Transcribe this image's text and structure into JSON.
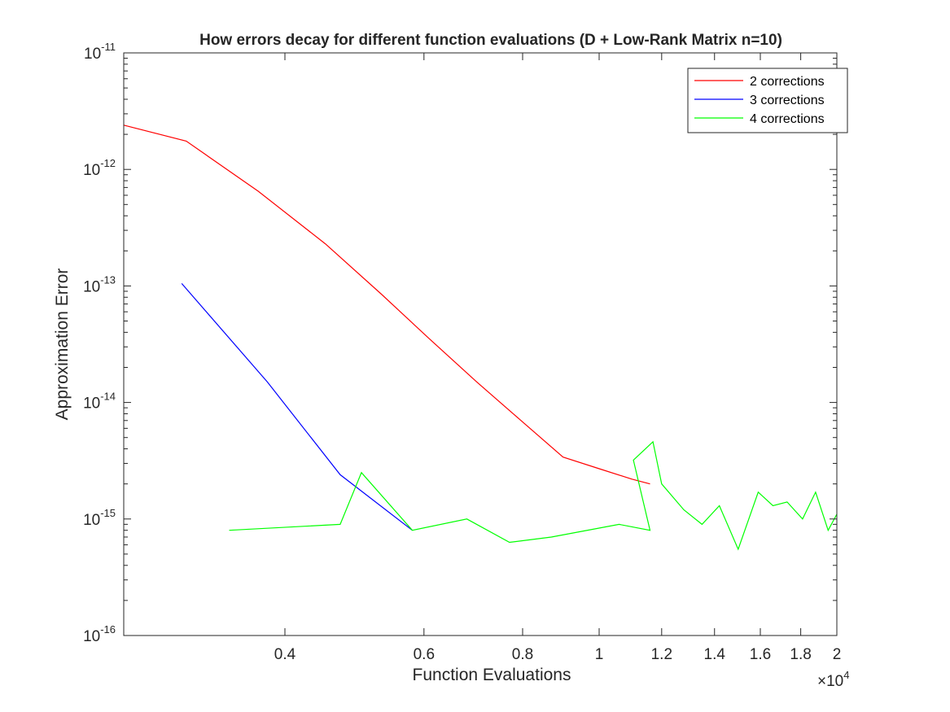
{
  "chart_data": {
    "type": "line",
    "title": "How errors decay for different function evaluations (D + Low-Rank Matrix n=10)",
    "xlabel": "Function Evaluations",
    "ylabel": "Approximation Error",
    "x_multiplier": "×10",
    "x_multiplier_exp": "4",
    "xscale": "log",
    "yscale": "log",
    "xlim": [
      0.25,
      2.0
    ],
    "ylim": [
      1e-16,
      1e-11
    ],
    "grid": false,
    "legend_position": "top-right",
    "x_ticks": [
      {
        "value": 0.4,
        "label": "0.4"
      },
      {
        "value": 0.6,
        "label": "0.6"
      },
      {
        "value": 0.8,
        "label": "0.8"
      },
      {
        "value": 1.0,
        "label": "1"
      },
      {
        "value": 1.2,
        "label": "1.2"
      },
      {
        "value": 1.4,
        "label": "1.4"
      },
      {
        "value": 1.6,
        "label": "1.6"
      },
      {
        "value": 1.8,
        "label": "1.8"
      },
      {
        "value": 2.0,
        "label": "2"
      }
    ],
    "y_ticks": [
      {
        "value": 1e-16,
        "base": "10",
        "exp": "-16"
      },
      {
        "value": 1e-15,
        "base": "10",
        "exp": "-15"
      },
      {
        "value": 1e-14,
        "base": "10",
        "exp": "-14"
      },
      {
        "value": 1e-13,
        "base": "10",
        "exp": "-13"
      },
      {
        "value": 1e-12,
        "base": "10",
        "exp": "-12"
      },
      {
        "value": 1e-11,
        "base": "10",
        "exp": "-11"
      }
    ],
    "series": [
      {
        "name": "2 corrections",
        "color": "#ff0000",
        "x": [
          0.25,
          0.3,
          0.37,
          0.45,
          0.53,
          0.61,
          0.7,
          0.8,
          0.9,
          1.0,
          1.1,
          1.16
        ],
        "y": [
          2.4e-12,
          1.75e-12,
          6.5e-13,
          2.3e-13,
          8.5e-14,
          3.5e-14,
          1.5e-14,
          6.8e-15,
          3.4e-15,
          2.7e-15,
          2.2e-15,
          2e-15
        ]
      },
      {
        "name": "3 corrections",
        "color": "#0000ff",
        "x": [
          0.296,
          0.38,
          0.47,
          0.58
        ],
        "y": [
          1.05e-13,
          1.5e-14,
          2.4e-15,
          8e-16
        ]
      },
      {
        "name": "4 corrections",
        "color": "#00ff00",
        "x": [
          0.34,
          0.47,
          0.5,
          0.58,
          0.68,
          0.77,
          0.87,
          1.06,
          1.16,
          1.105,
          1.17,
          1.2,
          1.28,
          1.35,
          1.42,
          1.5,
          1.59,
          1.66,
          1.73,
          1.81,
          1.88,
          1.95,
          2.0
        ],
        "y": [
          8e-16,
          9e-16,
          2.5e-15,
          8e-16,
          1e-15,
          6.3e-16,
          7e-16,
          9e-16,
          8e-16,
          3.2e-15,
          4.6e-15,
          2e-15,
          1.2e-15,
          9e-16,
          1.3e-15,
          5.5e-16,
          1.7e-15,
          1.3e-15,
          1.4e-15,
          1e-15,
          1.7e-15,
          8e-16,
          1.1e-15
        ]
      }
    ]
  }
}
